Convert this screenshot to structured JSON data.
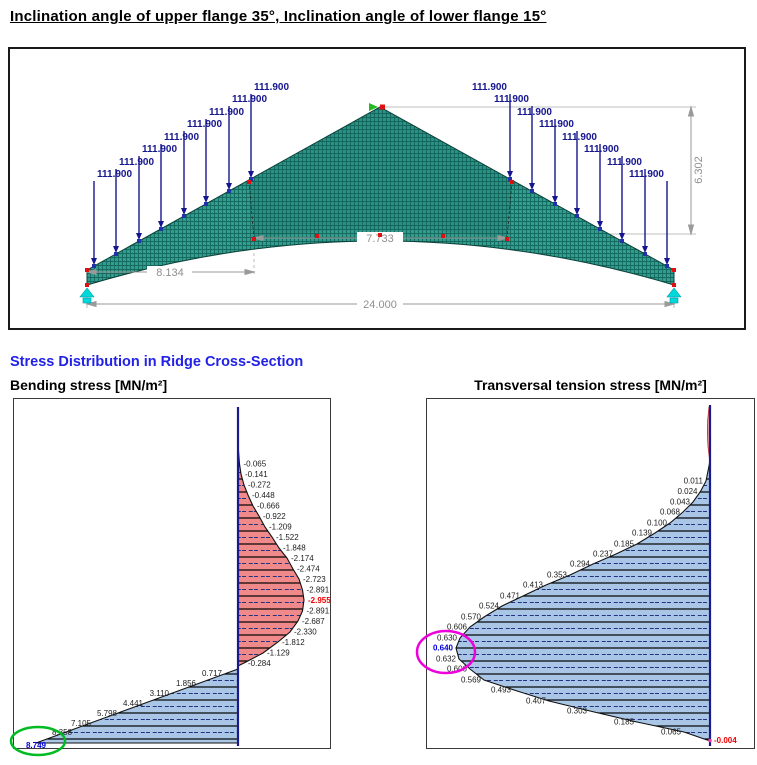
{
  "document": {
    "title": "Inclination angle of upper flange 35°, Inclination angle of lower flange 15°",
    "section_heading": "Stress Distribution in Ridge Cross-Section"
  },
  "truss": {
    "load_label": "111.900",
    "loads_per_side": 8,
    "dim_left": "8.134",
    "dim_ridge": "7.733",
    "dim_span": "24.000",
    "dim_height": "6.302"
  },
  "charts": {
    "bending": {
      "title": "Bending stress [MN/m²]",
      "labels": [
        "-0.065",
        "-0.141",
        "-0.272",
        "-0.448",
        "-0.666",
        "-0.922",
        "-1.209",
        "-1.522",
        "-1.848",
        "-2.174",
        "-2.474",
        "-2.723",
        "-2.891",
        "-2.955",
        "-2.891",
        "-2.687",
        "-2.330",
        "-1.812",
        "-1.129",
        "-0.284",
        "0.717",
        "1.856",
        "3.110",
        "4.441",
        "5.798",
        "7.105",
        "8.358",
        "8.749"
      ],
      "extreme_negative": "-2.955",
      "extreme_positive": "8.749"
    },
    "transversal": {
      "title": "Transversal tension stress [MN/m²]",
      "labels": [
        "0.011",
        "0.024",
        "0.043",
        "0.068",
        "0.100",
        "0.139",
        "0.185",
        "0.237",
        "0.294",
        "0.353",
        "0.413",
        "0.471",
        "0.524",
        "0.570",
        "0.606",
        "0.630",
        "0.640",
        "0.632",
        "0.606",
        "0.569",
        "0.493",
        "0.407",
        "0.303",
        "0.185",
        "0.065"
      ],
      "extreme": "0.640",
      "end_value": "-0.004"
    }
  },
  "chart_data": [
    {
      "type": "area",
      "title": "Bending stress [MN/m²]",
      "orientation": "vertical stress profile over ridge cross-section height, top to bottom",
      "units": "MN/m²",
      "values": [
        -0.065,
        -0.141,
        -0.272,
        -0.448,
        -0.666,
        -0.922,
        -1.209,
        -1.522,
        -1.848,
        -2.174,
        -2.474,
        -2.723,
        -2.891,
        -2.955,
        -2.891,
        -2.687,
        -2.33,
        -1.812,
        -1.129,
        -0.284,
        0.717,
        1.856,
        3.11,
        4.441,
        5.798,
        7.105,
        8.358,
        8.749
      ],
      "min": -2.955,
      "max": 8.749,
      "negative_region_fill": "#f08a8a",
      "positive_region_fill": "#a9c6e6",
      "annotations": [
        "max value 8.749 circled in green",
        "extreme -2.955 printed red"
      ]
    },
    {
      "type": "area",
      "title": "Transversal tension stress [MN/m²]",
      "orientation": "vertical stress profile over ridge cross-section height, top to bottom",
      "units": "MN/m²",
      "values": [
        0.011,
        0.024,
        0.043,
        0.068,
        0.1,
        0.139,
        0.185,
        0.237,
        0.294,
        0.353,
        0.413,
        0.471,
        0.524,
        0.57,
        0.606,
        0.63,
        0.64,
        0.632,
        0.606,
        0.569,
        0.493,
        0.407,
        0.303,
        0.185,
        0.065,
        -0.004
      ],
      "min": -0.004,
      "max": 0.64,
      "positive_region_fill": "#a9c6e6",
      "annotations": [
        "max value 0.640 circled in magenta",
        "end value -0.004 printed red"
      ]
    }
  ],
  "truss_chart": {
    "type": "structural model",
    "loads": {
      "label_each": "111.900",
      "count": 16
    },
    "dimensions": {
      "left_segment": 8.134,
      "ridge_segment": 7.733,
      "total_span": 24.0,
      "height": 6.302
    }
  },
  "colors": {
    "heading_blue": "#2121e8",
    "load_navy": "#15158f",
    "mesh_teal": "#2f9e8e",
    "dimension_gray": "#9a9a9a",
    "negative_fill": "#f08a8a",
    "positive_fill": "#a9c6e6",
    "extreme_red": "#ee0000",
    "extreme_blue": "#0000dd",
    "green_annotation": "#00bb22",
    "magenta_annotation": "#ee00dd",
    "support_cyan": "#00d9d9"
  }
}
